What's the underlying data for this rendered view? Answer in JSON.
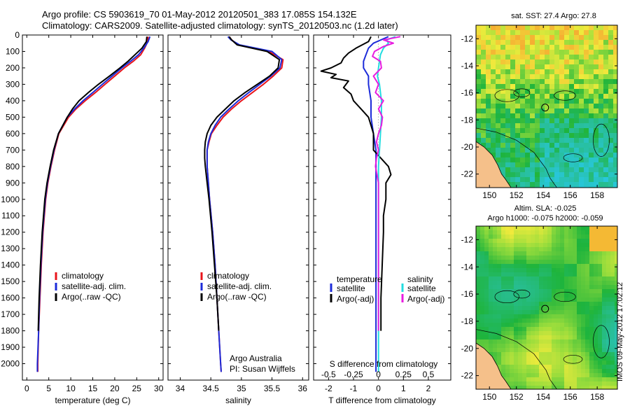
{
  "header": {
    "line1": "Argo profile: CS 5903619_70 01-May-2012 20120501_383 17.085S 154.132E",
    "line2": "Climatology: CARS2009. Satellite-adjusted climatology: synTS_20120503.nc (1.2d later)"
  },
  "colors": {
    "climatology": "#e8141b",
    "satellite": "#1c2bd9",
    "argo": "#000000",
    "satellite_salinity": "#22dde0",
    "argo_salinity": "#e81ce0"
  },
  "depth_axis": {
    "range": [
      0,
      2100
    ],
    "ticks": [
      0,
      100,
      200,
      300,
      400,
      500,
      600,
      700,
      800,
      900,
      1000,
      1100,
      1200,
      1300,
      1400,
      1500,
      1600,
      1700,
      1800,
      1900,
      2000
    ]
  },
  "chart_data": [
    {
      "id": "temperature",
      "type": "line",
      "xlabel": "temperature (deg C)",
      "xlim": [
        -1,
        31
      ],
      "xticks": [
        0,
        5,
        10,
        15,
        20,
        25,
        30
      ],
      "ylim": [
        2100,
        0
      ],
      "legend": [
        "climatology",
        "satellite-adj. clim.",
        "Argo(..raw -QC)"
      ],
      "series": [
        {
          "name": "climatology",
          "depth": [
            10,
            40,
            80,
            120,
            160,
            200,
            250,
            300,
            350,
            400,
            450,
            500,
            600,
            700,
            800,
            900,
            1000,
            1200,
            1400,
            1600,
            1800,
            2000,
            2050
          ],
          "values": [
            27.6,
            27.5,
            26.8,
            25.9,
            24.2,
            22.2,
            20.0,
            17.8,
            15.6,
            13.3,
            11.2,
            9.5,
            7.3,
            6.3,
            5.5,
            4.8,
            4.3,
            3.7,
            3.3,
            3.0,
            2.7,
            2.5,
            2.5
          ]
        },
        {
          "name": "satellite-adj. clim.",
          "depth": [
            10,
            40,
            80,
            120,
            160,
            200,
            250,
            300,
            350,
            400,
            450,
            500,
            600,
            700,
            800,
            900,
            1000,
            1200,
            1400,
            1600,
            1800,
            2000,
            2050
          ],
          "values": [
            28.0,
            27.6,
            26.6,
            25.4,
            23.6,
            21.6,
            19.4,
            17.2,
            15.0,
            12.8,
            10.9,
            9.2,
            7.2,
            6.2,
            5.4,
            4.7,
            4.2,
            3.6,
            3.2,
            2.9,
            2.7,
            2.4,
            2.4
          ]
        },
        {
          "name": "Argo(..raw -QC)",
          "depth": [
            10,
            40,
            80,
            120,
            160,
            200,
            250,
            300,
            350,
            400,
            450,
            500,
            600,
            700,
            800,
            900,
            1000,
            1200,
            1400,
            1600,
            1800
          ],
          "values": [
            27.3,
            27.2,
            26.2,
            24.6,
            23.0,
            21.2,
            18.8,
            16.3,
            14.0,
            11.9,
            10.4,
            9.2,
            7.2,
            6.1,
            5.3,
            4.6,
            4.1,
            3.5,
            3.1,
            2.8,
            2.6
          ]
        }
      ]
    },
    {
      "id": "salinity",
      "type": "line",
      "xlabel": "salinity",
      "xlim": [
        33.8,
        36.1
      ],
      "xticks": [
        34,
        34.5,
        35,
        35.5,
        36
      ],
      "xtick_labels": [
        "34",
        "34.5",
        "35",
        "35.5",
        "36"
      ],
      "ylim": [
        2100,
        0
      ],
      "legend": [
        "climatology",
        "satellite-adj. clim.",
        "Argo(..raw -QC)"
      ],
      "annotation": [
        "Argo Australia",
        "PI: Susan Wijffels"
      ],
      "series": [
        {
          "name": "climatology",
          "depth": [
            10,
            30,
            60,
            100,
            150,
            200,
            250,
            300,
            350,
            400,
            450,
            500,
            550,
            600,
            650,
            700,
            800,
            900,
            1000,
            1200,
            1400,
            1600,
            1800,
            2000,
            2050
          ],
          "values": [
            34.8,
            34.84,
            34.95,
            35.45,
            35.68,
            35.66,
            35.52,
            35.36,
            35.18,
            35.0,
            34.84,
            34.7,
            34.6,
            34.51,
            34.47,
            34.44,
            34.44,
            34.46,
            34.48,
            34.53,
            34.57,
            34.6,
            34.63,
            34.66,
            34.67
          ]
        },
        {
          "name": "satellite-adj. clim.",
          "depth": [
            10,
            30,
            60,
            100,
            150,
            200,
            250,
            300,
            350,
            400,
            450,
            500,
            550,
            600,
            650,
            700,
            800,
            900,
            1000,
            1200,
            1400,
            1600,
            1800,
            2000,
            2050
          ],
          "values": [
            34.78,
            34.83,
            34.97,
            35.5,
            35.66,
            35.63,
            35.48,
            35.3,
            35.12,
            34.95,
            34.8,
            34.66,
            34.57,
            34.5,
            34.46,
            34.44,
            34.44,
            34.46,
            34.48,
            34.53,
            34.57,
            34.6,
            34.63,
            34.66,
            34.67
          ]
        },
        {
          "name": "Argo(..raw -QC)",
          "depth": [
            10,
            30,
            60,
            100,
            150,
            200,
            250,
            300,
            350,
            400,
            450,
            500,
            550,
            600,
            650,
            700,
            750,
            800,
            900,
            1000,
            1200,
            1400,
            1600,
            1800
          ],
          "values": [
            34.8,
            34.84,
            34.93,
            35.42,
            35.62,
            35.6,
            35.46,
            35.26,
            35.06,
            34.88,
            34.74,
            34.6,
            34.5,
            34.44,
            34.41,
            34.4,
            34.4,
            34.41,
            34.44,
            34.47,
            34.52,
            34.56,
            34.6,
            34.63
          ]
        }
      ]
    },
    {
      "id": "difference",
      "type": "line",
      "xlabel_top": "S difference from climatology",
      "xlabel": "T difference from climatology",
      "xlim": [
        -2.6,
        2.9
      ],
      "xticks": [
        -2,
        -1,
        0,
        1,
        2
      ],
      "xtick_labels": [
        "-2",
        "-1",
        "0",
        "1",
        "2"
      ],
      "s_ticks": [
        -0.5,
        -0.25,
        0,
        0.25,
        0.5
      ],
      "s_tick_labels": [
        "-0.5",
        "-0.25",
        "0",
        "0.25",
        "0.5"
      ],
      "ylim": [
        2100,
        0
      ],
      "legend_temperature": {
        "title": "temperature",
        "items": [
          "satellite",
          "Argo(-adj)"
        ]
      },
      "legend_salinity": {
        "title": "salinity",
        "items": [
          "satellite",
          "Argo(-adj)"
        ]
      },
      "series": [
        {
          "name": "temperature satellite",
          "depth": [
            10,
            30,
            50,
            80,
            120,
            160,
            200,
            250,
            300,
            400,
            500,
            600,
            700,
            800,
            900,
            1000,
            1200,
            1400,
            1600,
            1800,
            2000,
            2050
          ],
          "values": [
            0.4,
            0.1,
            -0.2,
            -0.4,
            -0.5,
            -0.6,
            -0.6,
            -0.4,
            -0.4,
            -0.3,
            -0.3,
            -0.2,
            -0.1,
            -0.1,
            -0.1,
            -0.1,
            -0.1,
            -0.1,
            -0.1,
            -0.1,
            -0.1,
            -0.1
          ]
        },
        {
          "name": "temperature Argo(-adj)",
          "depth": [
            10,
            40,
            80,
            110,
            140,
            170,
            200,
            220,
            240,
            260,
            280,
            320,
            360,
            400,
            450,
            500,
            550,
            600,
            650,
            700,
            750,
            800,
            850,
            900,
            1000,
            1100,
            1200,
            1400,
            1600,
            1800
          ],
          "values": [
            -0.3,
            -0.4,
            -0.9,
            -1.2,
            -1.4,
            -1.5,
            -1.9,
            -2.3,
            -1.7,
            -1.9,
            -1.2,
            -1.4,
            -1.1,
            -1.0,
            -0.7,
            -0.4,
            -0.3,
            -0.2,
            -0.2,
            -0.2,
            0.1,
            0.4,
            0.5,
            0.3,
            0.3,
            0.2,
            0.2,
            0.15,
            0.1,
            0.1
          ]
        },
        {
          "name": "salinity satellite",
          "depth": [
            10,
            30,
            50,
            80,
            120,
            160,
            200,
            250,
            300,
            400,
            500,
            600,
            700,
            800,
            900,
            1000,
            1200,
            1400,
            1600,
            1800,
            2000,
            2050
          ],
          "values": [
            0.17,
            0.08,
            0.1,
            0.05,
            0.02,
            0.01,
            0.0,
            -0.01,
            0.01,
            0.03,
            0.03,
            0.02,
            0.01,
            0.0,
            0.0,
            0.0,
            0.0,
            0.0,
            0.0,
            0.0,
            0.0,
            0.0
          ]
        },
        {
          "name": "salinity Argo(-adj)",
          "depth": [
            10,
            30,
            50,
            70,
            100,
            130,
            160,
            200,
            250,
            300,
            350,
            400,
            450,
            500,
            550,
            600,
            650,
            700,
            750,
            800,
            900,
            1000,
            1200,
            1400,
            1600,
            1800
          ],
          "values": [
            0.22,
            0.05,
            0.15,
            0.05,
            -0.04,
            -0.06,
            0.02,
            0.03,
            -0.05,
            0.0,
            -0.03,
            0.05,
            0.0,
            0.04,
            0.03,
            0.0,
            -0.02,
            0.0,
            -0.02,
            -0.03,
            0.0,
            0.0,
            0.0,
            0.0,
            0.0,
            0.0
          ]
        }
      ]
    },
    {
      "id": "sst_map",
      "type": "heatmap",
      "title": "sat. SST: 27.4  Argo: 27.8",
      "xlim": [
        149,
        159.5
      ],
      "ylim": [
        -23,
        -11
      ],
      "xticks": [
        150,
        152,
        154,
        156,
        158
      ],
      "yticks": [
        -12,
        -14,
        -16,
        -18,
        -20,
        -22
      ],
      "profile_marker": [
        154.132,
        -17.085
      ]
    },
    {
      "id": "sla_map",
      "type": "heatmap",
      "title_line1": "Altim. SLA: -0.025",
      "title_line2": "Argo h1000: -0.075  h2000: -0.059",
      "xlim": [
        149,
        159.5
      ],
      "ylim": [
        -23,
        -11
      ],
      "xticks": [
        150,
        152,
        154,
        156,
        158
      ],
      "yticks": [
        -12,
        -14,
        -16,
        -18,
        -20,
        -22
      ],
      "profile_marker": [
        154.132,
        -17.085
      ]
    }
  ],
  "stamp": "IMOS 09-May-2012 17:02:12"
}
